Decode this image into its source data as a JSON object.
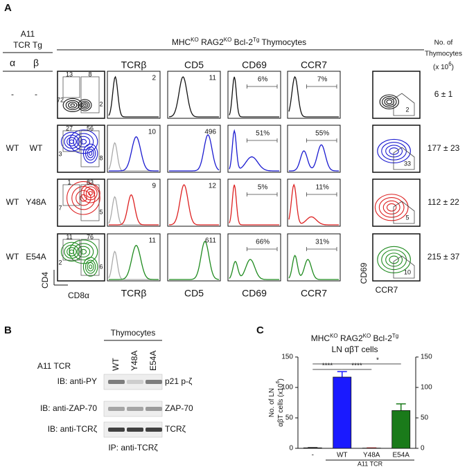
{
  "figure": {
    "a": {
      "label": "A",
      "tg_header": [
        "A11",
        "TCR Tg"
      ],
      "chains": [
        "α",
        "β"
      ],
      "title_parts": [
        "MHC",
        "KO",
        " RAG2",
        "KO",
        " Bcl-2",
        "Tg",
        " Thymocytes"
      ],
      "count_header": [
        "No. of",
        "Thymocytes",
        "(x 10",
        "6",
        ")"
      ],
      "markers": [
        "TCRβ",
        "CD5",
        "CD69",
        "CCR7"
      ],
      "axes": {
        "contour_y": "CD4",
        "contour_x": "CD8α",
        "right_y": "CD69",
        "right_x": "CCR7"
      },
      "rows": [
        {
          "alpha": "-",
          "beta": "-",
          "color": "#111111",
          "quadrants": [
            "13",
            "8",
            "72",
            "2"
          ],
          "hist": [
            "2",
            "11",
            "6%",
            "7%"
          ],
          "gate": "2",
          "count": "6 ± 1"
        },
        {
          "alpha": "WT",
          "beta": "WT",
          "color": "#1a1ad0",
          "quadrants": [
            "27",
            "56",
            "3",
            "8"
          ],
          "hist": [
            "10",
            "496",
            "51%",
            "55%"
          ],
          "gate": "33",
          "count": "177 ± 23"
        },
        {
          "alpha": "WT",
          "beta": "Y48A",
          "color": "#dd2020",
          "quadrants": [
            "1",
            "83",
            "7",
            "5"
          ],
          "hist": [
            "9",
            "12",
            "5%",
            "11%"
          ],
          "gate": "5",
          "count": "112 ± 22"
        },
        {
          "alpha": "WT",
          "beta": "E54A",
          "color": "#1e8a1e",
          "quadrants": [
            "11",
            "76",
            "2",
            "6"
          ],
          "hist": [
            "11",
            "611",
            "66%",
            "31%"
          ],
          "gate": "10",
          "count": "215 ± 37"
        }
      ]
    },
    "b": {
      "label": "B",
      "group": "Thymocytes",
      "lanes": [
        "WT",
        "Y48A",
        "E54A"
      ],
      "lane_header": "A11 TCR",
      "blots": [
        {
          "ib": "IB: anti-PY",
          "band": "p21 p-ζ"
        },
        {
          "ib": "IB: anti-ZAP-70",
          "band": "ZAP-70"
        },
        {
          "ib": "IB: anti-TCRζ",
          "band": "TCRζ"
        }
      ],
      "ip": "IP: anti-TCRζ"
    }
  },
  "chart_data": {
    "type": "bar",
    "panel_label": "C",
    "title_parts": [
      "MHC",
      "KO",
      " RAG2",
      "KO",
      " Bcl-2",
      "Tg"
    ],
    "subtitle": "LN αβT cells",
    "ylabel_parts": [
      "No. of LN",
      "αβT cells (x10",
      "6",
      ")"
    ],
    "categories": [
      "-",
      "WT",
      "Y48A",
      "E54A"
    ],
    "xlabel": "A11 TCR",
    "values": [
      0.8,
      117,
      0.4,
      62
    ],
    "errors": [
      0.3,
      9,
      0.2,
      11
    ],
    "colors": [
      "#222222",
      "#1a1aff",
      "#dd1a1a",
      "#1a7a1a"
    ],
    "ylim": [
      0,
      150
    ],
    "yticks": [
      0,
      50,
      100,
      150
    ],
    "y2lim": [
      0,
      150
    ],
    "y2ticks": [
      0,
      50,
      100,
      150
    ],
    "significance": [
      "****",
      "****",
      "*"
    ]
  }
}
